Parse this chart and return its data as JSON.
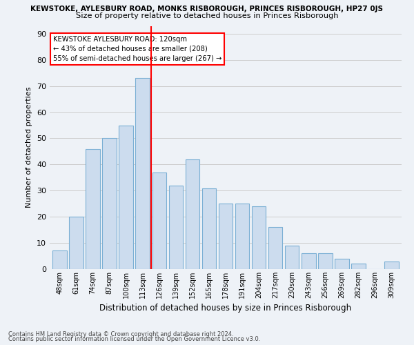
{
  "title": "KEWSTOKE, AYLESBURY ROAD, MONKS RISBOROUGH, PRINCES RISBOROUGH, HP27 0JS",
  "subtitle": "Size of property relative to detached houses in Princes Risborough",
  "xlabel": "Distribution of detached houses by size in Princes Risborough",
  "ylabel": "Number of detached properties",
  "categories": [
    "48sqm",
    "61sqm",
    "74sqm",
    "87sqm",
    "100sqm",
    "113sqm",
    "126sqm",
    "139sqm",
    "152sqm",
    "165sqm",
    "178sqm",
    "191sqm",
    "204sqm",
    "217sqm",
    "230sqm",
    "243sqm",
    "256sqm",
    "269sqm",
    "282sqm",
    "296sqm",
    "309sqm"
  ],
  "values": [
    7,
    20,
    46,
    50,
    55,
    73,
    37,
    32,
    42,
    31,
    25,
    25,
    24,
    16,
    9,
    6,
    6,
    4,
    2,
    0,
    3
  ],
  "bar_color": "#ccdcee",
  "bar_edge_color": "#7aafd4",
  "redline_x": 5.5,
  "redline_label": "KEWSTOKE AYLESBURY ROAD: 120sqm",
  "annotation_line2": "← 43% of detached houses are smaller (208)",
  "annotation_line3": "55% of semi-detached houses are larger (267) →",
  "annotation_box_color": "white",
  "annotation_box_edge": "red",
  "redline_color": "red",
  "ylim": [
    0,
    93
  ],
  "yticks": [
    0,
    10,
    20,
    30,
    40,
    50,
    60,
    70,
    80,
    90
  ],
  "grid_color": "#cccccc",
  "background_color": "#eef2f7",
  "footer1": "Contains HM Land Registry data © Crown copyright and database right 2024.",
  "footer2": "Contains public sector information licensed under the Open Government Licence v3.0."
}
